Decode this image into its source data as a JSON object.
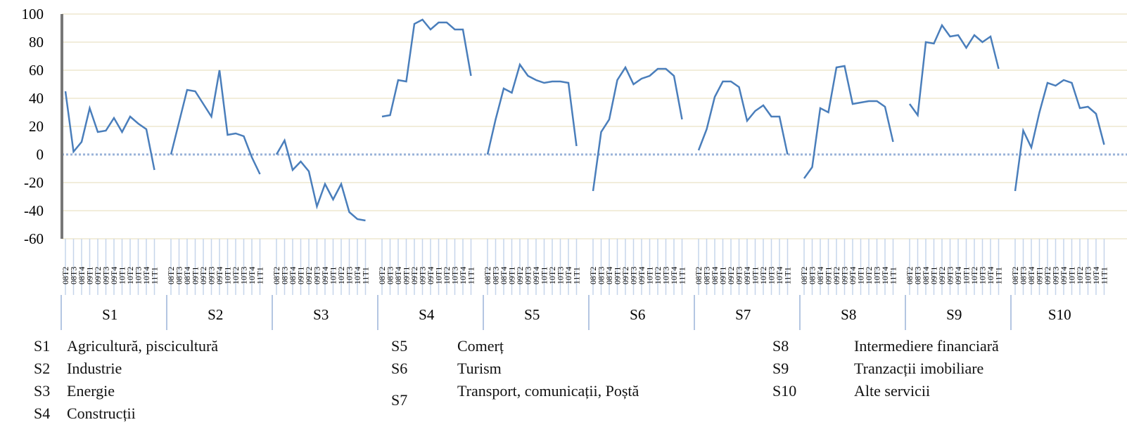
{
  "chart_data": {
    "type": "line",
    "quarters": [
      "08T2",
      "08T3",
      "08T4",
      "09T1",
      "09T2",
      "09T3",
      "09T4",
      "10T1",
      "10T2",
      "10T3",
      "10T4",
      "11T1"
    ],
    "ylim": [
      -60,
      100
    ],
    "yticks": [
      -60,
      -40,
      -20,
      0,
      20,
      40,
      60,
      80,
      100
    ],
    "grid": true,
    "color": "#4a7ebb",
    "series": [
      {
        "name": "S1",
        "description": "Agricultură, piscicultură",
        "values": [
          45,
          2,
          9,
          33,
          16,
          17,
          26,
          16,
          27,
          22,
          18,
          -11
        ]
      },
      {
        "name": "S2",
        "description": "Industrie",
        "values": [
          0,
          23,
          46,
          45,
          36,
          27,
          60,
          14,
          15,
          13,
          -2,
          -14
        ]
      },
      {
        "name": "S3",
        "description": "Energie",
        "values": [
          0,
          10,
          -11,
          -5,
          -12,
          -37,
          -21,
          -32,
          -21,
          -41,
          -46,
          -47
        ]
      },
      {
        "name": "S4",
        "description": "Construcții",
        "values": [
          27,
          28,
          53,
          52,
          93,
          96,
          89,
          94,
          94,
          89,
          89,
          56
        ]
      },
      {
        "name": "S5",
        "description": "Comerț",
        "values": [
          0,
          25,
          47,
          44,
          64,
          56,
          53,
          51,
          52,
          52,
          51,
          6
        ]
      },
      {
        "name": "S6",
        "description": "Turism",
        "values": [
          -26,
          16,
          25,
          53,
          62,
          50,
          54,
          56,
          61,
          61,
          56,
          25
        ]
      },
      {
        "name": "S7",
        "description": "Transport, comunicații, Poștă",
        "values": [
          3,
          18,
          41,
          52,
          52,
          48,
          24,
          31,
          35,
          27,
          27,
          0
        ]
      },
      {
        "name": "S8",
        "description": "Intermediere financiară",
        "values": [
          -17,
          -9,
          33,
          30,
          62,
          63,
          36,
          37,
          38,
          38,
          34,
          9
        ]
      },
      {
        "name": "S9",
        "description": "Tranzacții imobiliare",
        "values": [
          36,
          28,
          80,
          79,
          92,
          84,
          85,
          76,
          85,
          80,
          84,
          61
        ]
      },
      {
        "name": "S10",
        "description": "Alte servicii",
        "values": [
          -26,
          17,
          5,
          30,
          51,
          49,
          53,
          51,
          33,
          34,
          29,
          7
        ]
      }
    ]
  }
}
